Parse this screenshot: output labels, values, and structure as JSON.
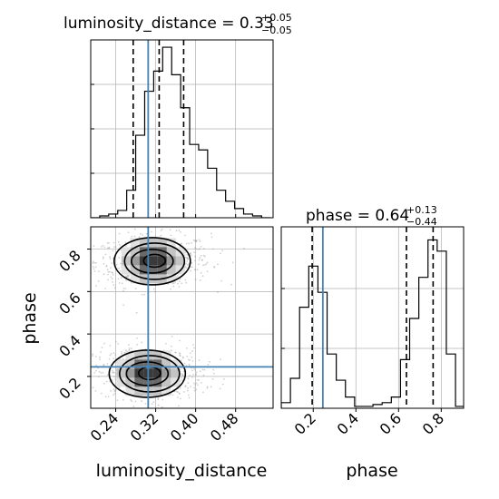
{
  "chart_data": {
    "type": "corner",
    "parameters": [
      "luminosity_distance",
      "phase"
    ],
    "titles": {
      "luminosity_distance": {
        "label": "luminosity_distance",
        "median": "0.33",
        "plus": "+0.05",
        "minus": "−0.05"
      },
      "phase": {
        "label": "phase",
        "median": "0.64",
        "plus": "+0.13",
        "minus": "−0.44"
      }
    },
    "truths": {
      "luminosity_distance": 0.305,
      "phase": 0.245
    },
    "quantiles": {
      "luminosity_distance": [
        0.275,
        0.327,
        0.376
      ],
      "phase": [
        0.195,
        0.637,
        0.762
      ]
    },
    "xlim": {
      "luminosity_distance": [
        0.19,
        0.555
      ],
      "phase": [
        0.05,
        0.905
      ]
    },
    "ylim": {
      "phase": [
        0.05,
        0.905
      ]
    },
    "ticks": {
      "luminosity_distance": [
        0.24,
        0.32,
        0.4,
        0.48
      ],
      "phase": [
        0.2,
        0.4,
        0.6,
        0.8
      ]
    },
    "tick_labels": {
      "luminosity_distance": [
        "0.24",
        "0.32",
        "0.40",
        "0.48"
      ],
      "phase": [
        "0.2",
        "0.4",
        "0.6",
        "0.8"
      ]
    },
    "axis_labels": {
      "x_left": "luminosity_distance",
      "x_right": "phase",
      "y": "phase"
    },
    "hist_luminosity_distance": {
      "edges": [
        0.19,
        0.208,
        0.226,
        0.244,
        0.262,
        0.28,
        0.298,
        0.316,
        0.334,
        0.352,
        0.37,
        0.388,
        0.406,
        0.424,
        0.442,
        0.46,
        0.478,
        0.496,
        0.514,
        0.532,
        0.55
      ],
      "density": [
        0.0,
        0.01,
        0.02,
        0.04,
        0.15,
        0.45,
        0.69,
        0.8,
        0.93,
        0.78,
        0.6,
        0.4,
        0.37,
        0.27,
        0.15,
        0.09,
        0.05,
        0.02,
        0.01,
        0.0
      ]
    },
    "hist_phase": {
      "edges": [
        0.05,
        0.093,
        0.136,
        0.179,
        0.222,
        0.265,
        0.308,
        0.351,
        0.394,
        0.437,
        0.48,
        0.523,
        0.566,
        0.609,
        0.652,
        0.695,
        0.738,
        0.781,
        0.824,
        0.867,
        0.91
      ],
      "density": [
        0.03,
        0.16,
        0.54,
        0.76,
        0.62,
        0.29,
        0.15,
        0.06,
        0.01,
        0.01,
        0.02,
        0.03,
        0.06,
        0.26,
        0.48,
        0.7,
        0.9,
        0.84,
        0.29,
        0.01
      ]
    },
    "joint_modes": [
      {
        "center_x": 0.315,
        "center_y": 0.745,
        "sigma_x": 0.05,
        "sigma_y": 0.055,
        "corr": 0.05
      },
      {
        "center_x": 0.305,
        "center_y": 0.215,
        "sigma_x": 0.048,
        "sigma_y": 0.055,
        "corr": -0.05
      }
    ],
    "grid": true,
    "colors": {
      "truth": "#4682b4",
      "hist": "#000000",
      "grid": "#b0b0b0",
      "samples": "#9a9a9a"
    }
  }
}
